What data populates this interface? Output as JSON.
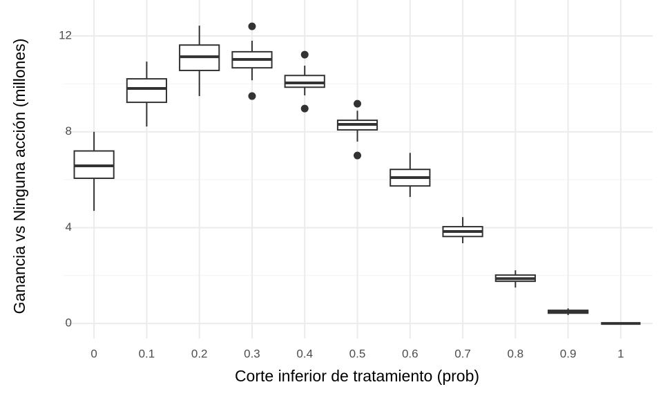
{
  "chart_data": {
    "type": "box",
    "x_label": "Corte inferior de tratamiento (prob)",
    "y_label": "Ganancia vs Ninguna acción (millones)",
    "categories": [
      "0",
      "0.1",
      "0.2",
      "0.3",
      "0.4",
      "0.5",
      "0.6",
      "0.7",
      "0.8",
      "0.9",
      "1"
    ],
    "whisker_low": [
      4.7,
      8.22,
      9.49,
      10.15,
      9.52,
      7.59,
      5.28,
      3.35,
      1.5,
      0.35,
      0
    ],
    "q1": [
      6.06,
      9.23,
      10.56,
      10.67,
      9.86,
      8.08,
      5.74,
      3.63,
      1.76,
      0.43,
      0
    ],
    "median": [
      6.58,
      9.81,
      11.13,
      11.02,
      10.04,
      8.31,
      6.09,
      3.84,
      1.87,
      0.49,
      0
    ],
    "q3": [
      7.2,
      10.21,
      11.62,
      11.34,
      10.35,
      8.48,
      6.43,
      4.04,
      2.02,
      0.55,
      0
    ],
    "whisker_high": [
      8.0,
      10.93,
      12.43,
      11.8,
      10.76,
      8.88,
      7.12,
      4.44,
      2.22,
      0.63,
      0
    ],
    "outliers": [
      [],
      [],
      [],
      [
        12.4,
        9.49
      ],
      [
        11.22,
        8.97
      ],
      [
        9.17,
        7.01
      ],
      [],
      [],
      [],
      [],
      []
    ],
    "color": "#333333",
    "fill": "#ffffff",
    "ylim": [
      -0.63,
      13.5
    ],
    "yticks": [
      0,
      4,
      8,
      12
    ],
    "yminorticks": [
      2,
      6,
      10
    ],
    "grid": true
  }
}
